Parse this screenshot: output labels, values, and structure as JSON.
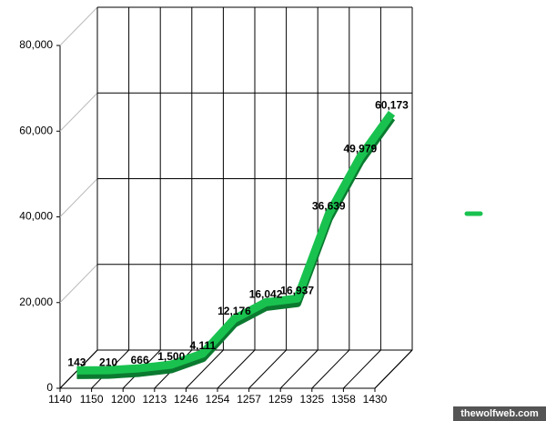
{
  "chart_data": {
    "type": "line3d",
    "categories": [
      "1140",
      "1150",
      "1200",
      "1213",
      "1246",
      "1254",
      "1257",
      "1259",
      "1325",
      "1358",
      "1430"
    ],
    "series": [
      {
        "color": "#19c24f",
        "values": [
          143,
          210,
          666,
          1500,
          4111,
          12176,
          16042,
          16937,
          36639,
          49979,
          60173
        ],
        "value_labels": [
          "143",
          "210",
          "666",
          "1,500",
          "4,111",
          "12,176",
          "16,042",
          "16,937",
          "36,639",
          "49,979",
          "60,173"
        ]
      }
    ],
    "ylim": [
      0,
      80000
    ],
    "yticks": [
      0,
      {
        "value": 20000,
        "label": "20,000"
      },
      {
        "value": 40000,
        "label": "40,000"
      },
      {
        "value": 60000,
        "label": "60,000"
      },
      {
        "value": 80000,
        "label": "80,000"
      }
    ],
    "grid": true,
    "watermark": "thewolfweb.com"
  }
}
